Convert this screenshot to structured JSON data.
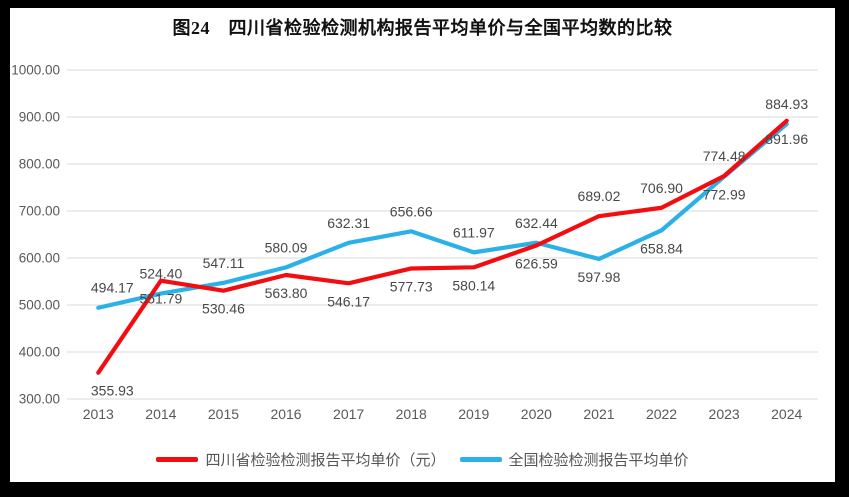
{
  "frame": {
    "border_color": "#000000",
    "panel_color": "#ffffff"
  },
  "chart_data": {
    "type": "line",
    "title": "图24　四川省检验检测机构报告平均单价与全国平均数的比较",
    "categories": [
      "2013",
      "2014",
      "2015",
      "2016",
      "2017",
      "2018",
      "2019",
      "2020",
      "2021",
      "2022",
      "2023",
      "2024"
    ],
    "series": [
      {
        "name": "四川省检验检测报告平均单价（元）",
        "color": "#f20d11",
        "values": [
          355.93,
          551.79,
          530.46,
          563.8,
          546.17,
          577.73,
          580.14,
          626.59,
          689.02,
          706.9,
          774.48,
          891.96
        ],
        "label_side": [
          "below",
          "below",
          "below",
          "below",
          "below",
          "below",
          "below",
          "below",
          "above",
          "above",
          "above",
          "below"
        ]
      },
      {
        "name": "全国检验检测报告平均单价",
        "color": "#2bb0e8",
        "values": [
          494.17,
          524.4,
          547.11,
          580.09,
          632.31,
          656.66,
          611.97,
          632.44,
          597.98,
          658.84,
          772.99,
          884.93
        ],
        "label_side": [
          "above",
          "above",
          "above",
          "above",
          "above",
          "above",
          "above",
          "above",
          "below",
          "below",
          "below",
          "above"
        ]
      }
    ],
    "ylim": [
      300,
      1000
    ],
    "y_ticks": [
      "1000.00",
      "900.00",
      "800.00",
      "700.00",
      "600.00",
      "500.00",
      "400.00",
      "300.00"
    ],
    "grid": true,
    "legend_position": "bottom",
    "gridline_color": "#d9d9d9",
    "axis_text_color": "#595959"
  }
}
